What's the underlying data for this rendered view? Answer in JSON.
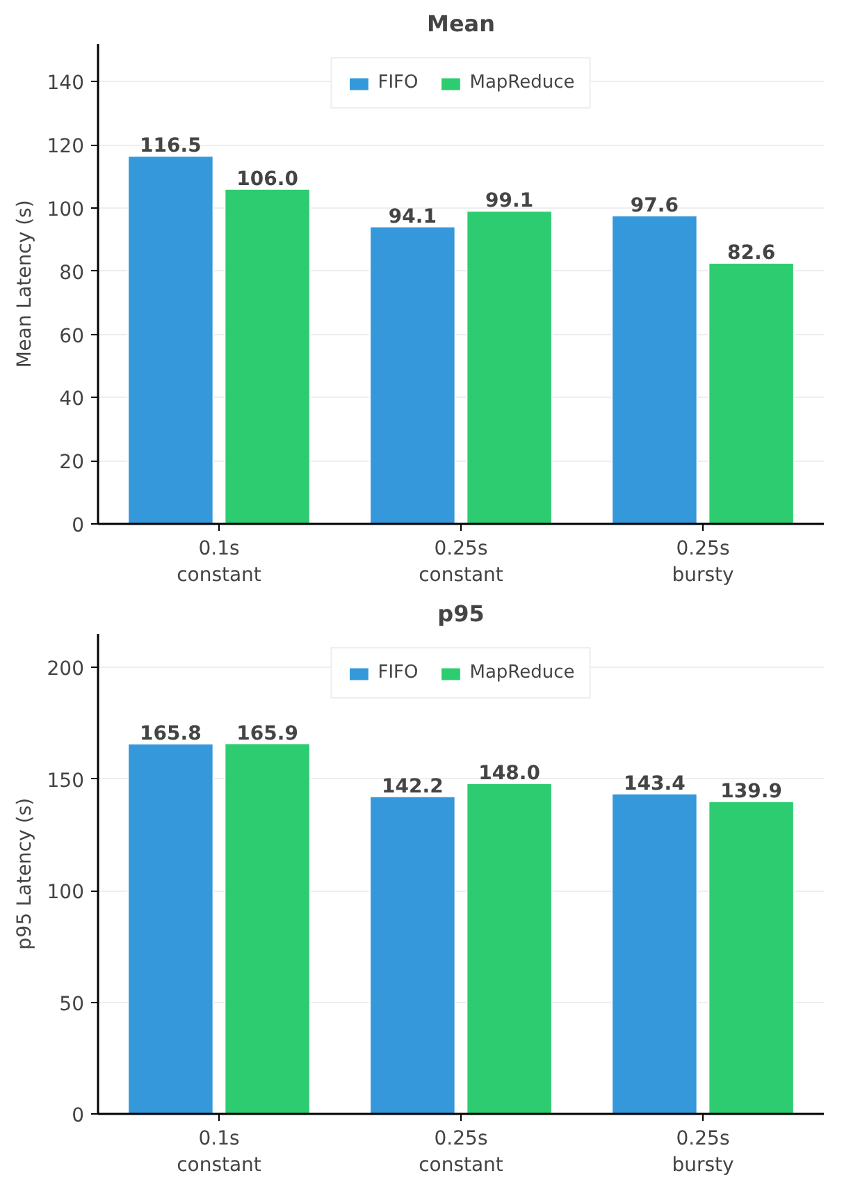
{
  "chart_data": [
    {
      "type": "bar",
      "title": "Mean",
      "ylabel": "Mean Latency (s)",
      "categories": [
        "0.1s\nconstant",
        "0.25s\nconstant",
        "0.25s\nbursty"
      ],
      "series": [
        {
          "name": "FIFO",
          "color": "#3498db",
          "values": [
            116.5,
            94.1,
            97.6
          ],
          "value_labels": [
            "116.5",
            "94.1",
            "97.6"
          ]
        },
        {
          "name": "MapReduce",
          "color": "#2ecc71",
          "values": [
            106.0,
            99.1,
            82.6
          ],
          "value_labels": [
            "106.0",
            "99.1",
            "82.6"
          ]
        }
      ],
      "ylim": [
        0,
        152
      ],
      "yticks": [
        0,
        20,
        40,
        60,
        80,
        100,
        120,
        140
      ],
      "grid": "y",
      "legend": "top"
    },
    {
      "type": "bar",
      "title": "p95",
      "ylabel": "p95 Latency (s)",
      "categories": [
        "0.1s\nconstant",
        "0.25s\nconstant",
        "0.25s\nbursty"
      ],
      "series": [
        {
          "name": "FIFO",
          "color": "#3498db",
          "values": [
            165.8,
            142.2,
            143.4
          ],
          "value_labels": [
            "165.8",
            "142.2",
            "143.4"
          ]
        },
        {
          "name": "MapReduce",
          "color": "#2ecc71",
          "values": [
            165.9,
            148.0,
            139.9
          ],
          "value_labels": [
            "165.9",
            "148.0",
            "139.9"
          ]
        }
      ],
      "ylim": [
        0,
        215
      ],
      "yticks": [
        0,
        50,
        100,
        150,
        200
      ],
      "grid": "y",
      "legend": "top"
    }
  ]
}
